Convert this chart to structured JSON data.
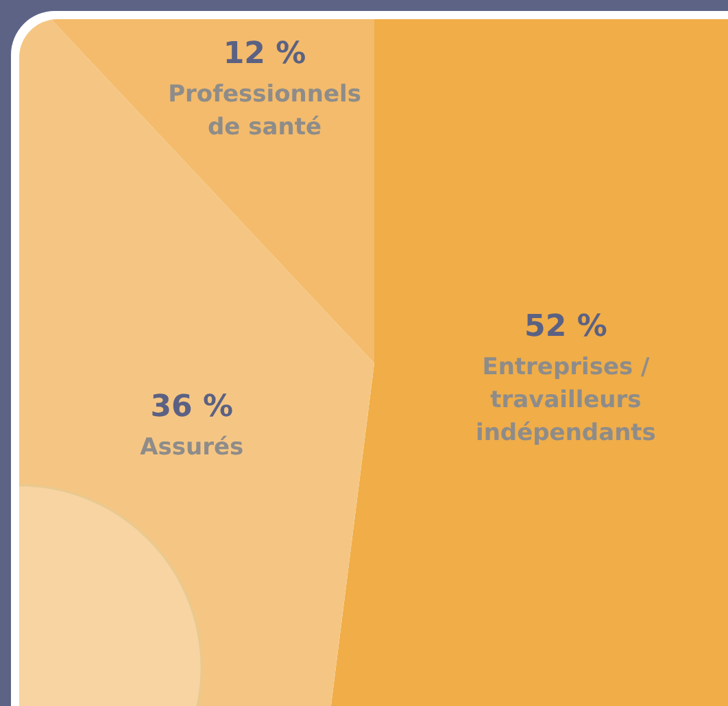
{
  "chart_data": {
    "type": "pie",
    "categories": [
      "Entreprises / travailleurs indépendants",
      "Assurés",
      "Professionnels de santé"
    ],
    "values": [
      52,
      36,
      12
    ],
    "colors": [
      "#f0ad48",
      "#f5c683",
      "#f3bb6b"
    ],
    "value_labels": [
      "52 %",
      "36 %",
      "12 %"
    ]
  }
}
